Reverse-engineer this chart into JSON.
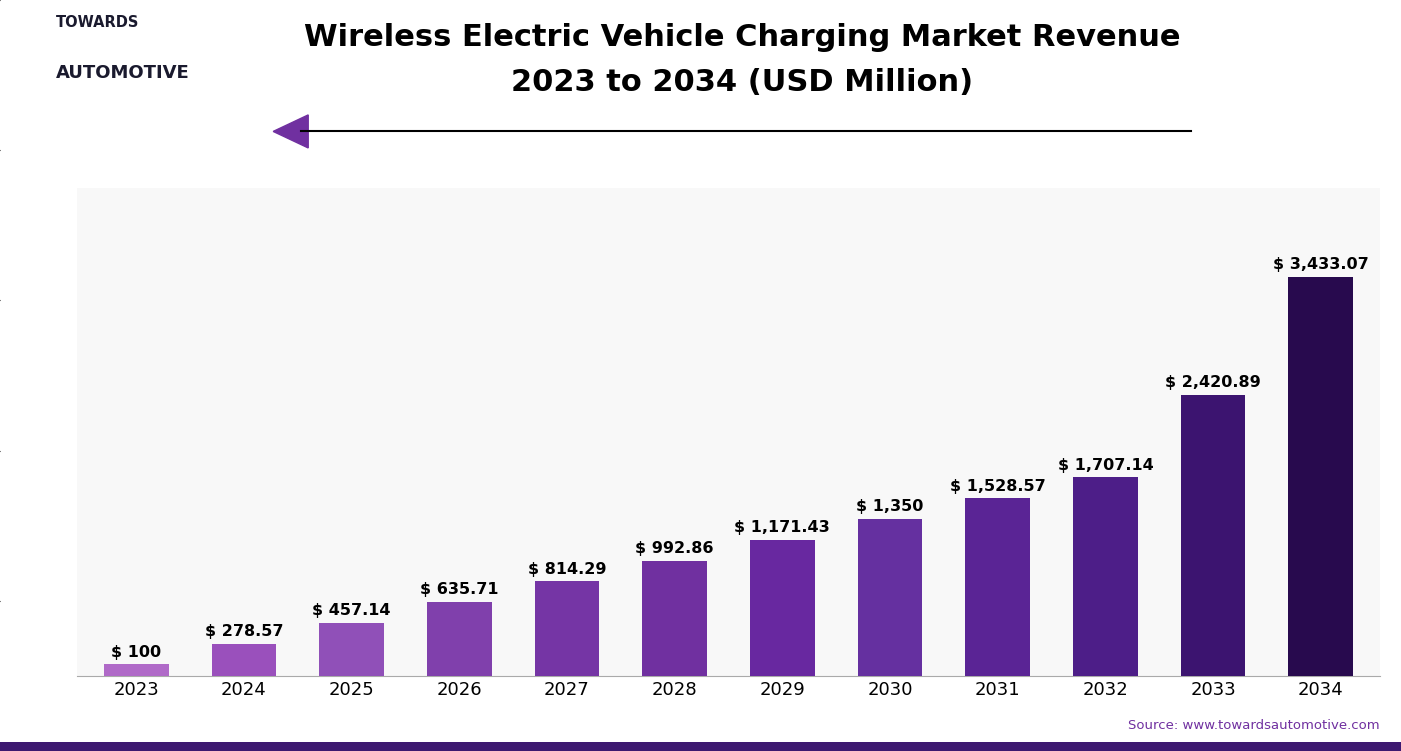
{
  "years": [
    2023,
    2024,
    2025,
    2026,
    2027,
    2028,
    2029,
    2030,
    2031,
    2032,
    2033,
    2034
  ],
  "values": [
    100,
    278.57,
    457.14,
    635.71,
    814.29,
    992.86,
    1171.43,
    1350,
    1528.57,
    1707.14,
    2420.89,
    3433.07
  ],
  "labels": [
    "$ 100",
    "$ 278.57",
    "$ 457.14",
    "$ 635.71",
    "$ 814.29",
    "$ 992.86",
    "$ 1,171.43",
    "$ 1,350",
    "$ 1,528.57",
    "$ 1,707.14",
    "$ 2,420.89",
    "$ 3,433.07"
  ],
  "bar_colors": [
    "#b06ac8",
    "#9a50bc",
    "#9050b8",
    "#8040ac",
    "#7535a5",
    "#7030a0",
    "#6828a0",
    "#6530a0",
    "#5a2495",
    "#4d1e88",
    "#3c1470",
    "#280a4e"
  ],
  "title_line1": "Wireless Electric Vehicle Charging Market Revenue",
  "title_line2": "2023 to 2034 (USD Million)",
  "source_text": "Source: www.towardsautomotive.com",
  "source_color": "#7030a0",
  "bg_color": "#ffffff",
  "plot_bg_color": "#f8f8f8",
  "grid_color": "#d0d0d0",
  "title_fontsize": 22,
  "label_fontsize": 11.5,
  "tick_fontsize": 13,
  "ylim": [
    0,
    4200
  ]
}
